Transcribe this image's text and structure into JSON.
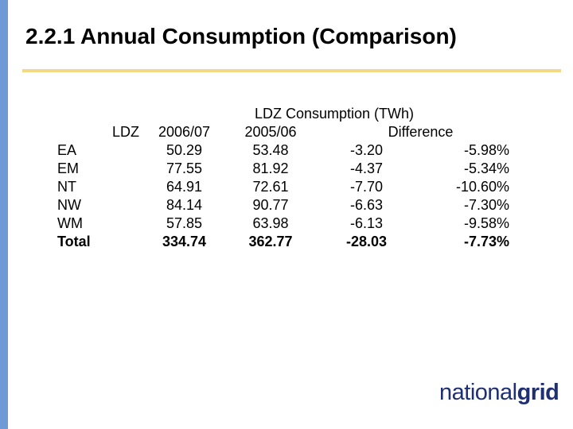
{
  "slide": {
    "title": "2.2.1   Annual Consumption (Comparison)"
  },
  "table": {
    "group_header": "LDZ Consumption (TWh)",
    "headers": {
      "ldz": "LDZ",
      "year1": "2006/07",
      "year2": "2005/06",
      "difference": "Difference"
    },
    "rows": [
      {
        "ldz": "EA",
        "y1": "50.29",
        "y2": "53.48",
        "diff": "-3.20",
        "pct": "-5.98%"
      },
      {
        "ldz": "EM",
        "y1": "77.55",
        "y2": "81.92",
        "diff": "-4.37",
        "pct": "-5.34%"
      },
      {
        "ldz": "NT",
        "y1": "64.91",
        "y2": "72.61",
        "diff": "-7.70",
        "pct": "-10.60%"
      },
      {
        "ldz": "NW",
        "y1": "84.14",
        "y2": "90.77",
        "diff": "-6.63",
        "pct": "-7.30%"
      },
      {
        "ldz": "WM",
        "y1": "57.85",
        "y2": "63.98",
        "diff": "-6.13",
        "pct": "-9.58%"
      },
      {
        "ldz": "Total",
        "y1": "334.74",
        "y2": "362.77",
        "diff": "-28.03",
        "pct": "-7.73%"
      }
    ]
  },
  "logo": {
    "part1": "national",
    "part2": "grid"
  },
  "colors": {
    "left_bar": "#6e9bd6",
    "title_rule": "#f2d985",
    "logo": "#1f2f73"
  }
}
